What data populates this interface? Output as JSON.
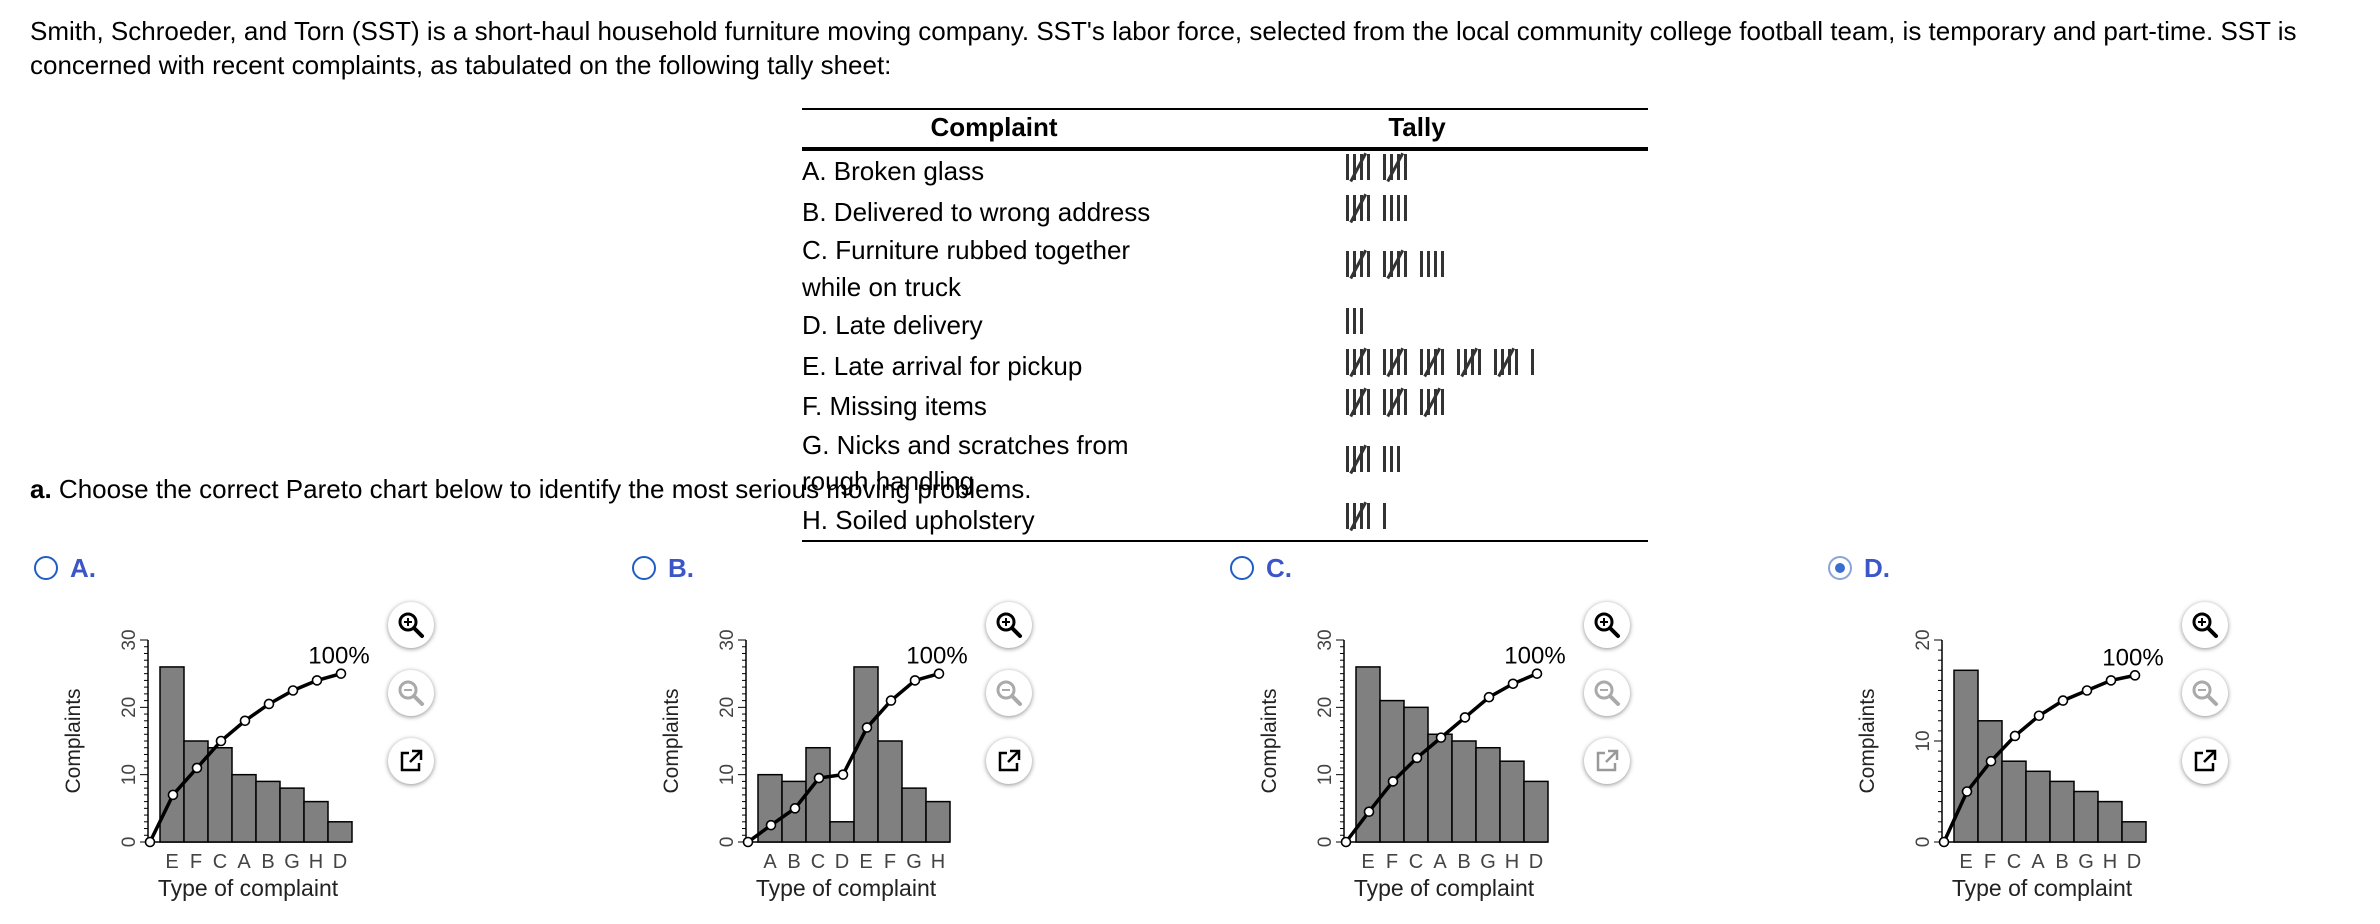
{
  "intro": "Smith, Schroeder, and Torn (SST) is a short-haul household furniture moving company. SST's labor force, selected from the local community college football team, is temporary and part-time. SST is concerned with recent complaints, as tabulated on the following tally sheet:",
  "table": {
    "headers": [
      "Complaint",
      "Tally"
    ],
    "rows": [
      {
        "label": "A. Broken glass",
        "count": 10
      },
      {
        "label": "B. Delivered to wrong address",
        "count": 9
      },
      {
        "label": "C. Furniture rubbed together while on truck",
        "count": 14
      },
      {
        "label": "D. Late delivery",
        "count": 3
      },
      {
        "label": "E. Late arrival for pickup",
        "count": 26
      },
      {
        "label": "F. Missing items",
        "count": 15
      },
      {
        "label": "G. Nicks and scratches from rough handling",
        "count": 8
      },
      {
        "label": "H. Soiled upholstery",
        "count": 6
      }
    ]
  },
  "question": {
    "prefix": "a.",
    "text": " Choose the correct Pareto chart below to identify the most serious moving problems."
  },
  "options": [
    {
      "letter": "A.",
      "selected": false
    },
    {
      "letter": "B.",
      "selected": false
    },
    {
      "letter": "C.",
      "selected": false
    },
    {
      "letter": "D.",
      "selected": true
    }
  ],
  "colors": {
    "bar": "#808080",
    "accent": "#3c56c7"
  },
  "icons": [
    "zoom-in-icon",
    "zoom-out-icon",
    "popout-icon"
  ],
  "chart_data": [
    {
      "type": "bar",
      "title": "",
      "xlabel": "Type of complaint",
      "ylabel": "Complaints",
      "categories": [
        "E",
        "F",
        "C",
        "A",
        "B",
        "G",
        "H",
        "D"
      ],
      "values": [
        26,
        15,
        14,
        10,
        9,
        8,
        6,
        3
      ],
      "ylim": [
        0,
        30
      ],
      "yticks": [
        0,
        10,
        20,
        30
      ],
      "cumulative_line": [
        0,
        7,
        11,
        15,
        18,
        20.5,
        22.5,
        24,
        25
      ],
      "cumulative_label": "100%"
    },
    {
      "type": "bar",
      "title": "",
      "xlabel": "Type of complaint",
      "ylabel": "Complaints",
      "categories": [
        "A",
        "B",
        "C",
        "D",
        "E",
        "F",
        "G",
        "H"
      ],
      "values": [
        10,
        9,
        14,
        3,
        26,
        15,
        8,
        6
      ],
      "ylim": [
        0,
        30
      ],
      "yticks": [
        0,
        10,
        20,
        30
      ],
      "cumulative_line": [
        0,
        2.5,
        5,
        9.5,
        10,
        17,
        21,
        24,
        25
      ],
      "cumulative_label": "100%"
    },
    {
      "type": "bar",
      "title": "",
      "xlabel": "Type of complaint",
      "ylabel": "Complaints",
      "categories": [
        "E",
        "F",
        "C",
        "A",
        "B",
        "G",
        "H",
        "D"
      ],
      "values": [
        26,
        21,
        20,
        16,
        15,
        14,
        12,
        9
      ],
      "ylim": [
        0,
        30
      ],
      "yticks": [
        0,
        10,
        20,
        30
      ],
      "cumulative_line": [
        0,
        4.5,
        9,
        12.5,
        15.5,
        18.5,
        21.5,
        23.5,
        25
      ],
      "cumulative_label": "100%"
    },
    {
      "type": "bar",
      "title": "",
      "xlabel": "Type of complaint",
      "ylabel": "Complaints",
      "categories": [
        "E",
        "F",
        "C",
        "A",
        "B",
        "G",
        "H",
        "D"
      ],
      "values": [
        17,
        12,
        8,
        7,
        6,
        5,
        4,
        2
      ],
      "ylim": [
        0,
        20
      ],
      "yticks": [
        0,
        10,
        20
      ],
      "cumulative_line": [
        0,
        5,
        8,
        10.5,
        12.5,
        14,
        15,
        16,
        16.5
      ],
      "cumulative_label": "100%"
    }
  ]
}
